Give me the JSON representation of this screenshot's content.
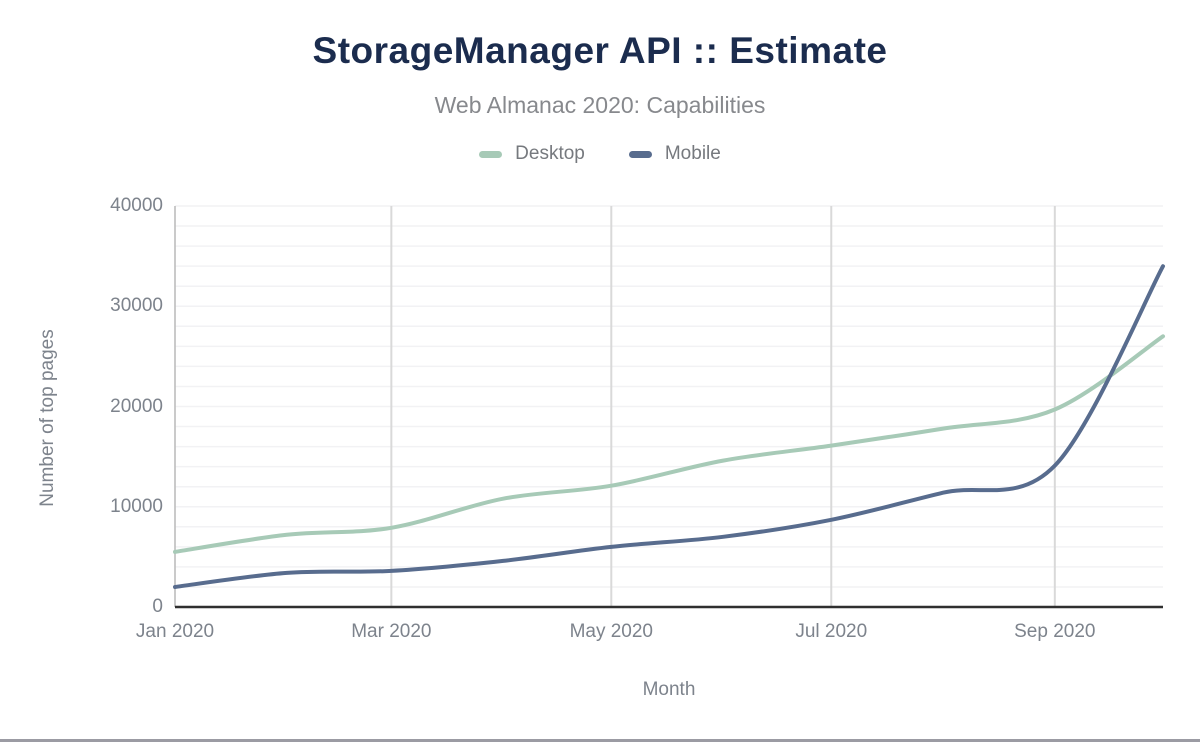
{
  "header": {
    "title": "StorageManager API :: Estimate",
    "subtitle": "Web Almanac 2020: Capabilities"
  },
  "colors": {
    "title": "#1b2c4e",
    "subtitle": "#87898d",
    "tick_label": "#7d838c",
    "desktop_line": "#a7cab7",
    "mobile_line": "#586c8e",
    "h_gridline": "#f2f2f4",
    "v_gridline": "#d9d9d9",
    "y_axis_line": "#b9b9b9",
    "x_axis_line": "#2f2f2f",
    "footer_bar": "#9b9ba3"
  },
  "chart_data": {
    "type": "line",
    "title": "StorageManager API :: Estimate",
    "subtitle": "Web Almanac 2020: Capabilities",
    "xlabel": "Month",
    "ylabel": "Number of top pages",
    "ylim": [
      0,
      40000
    ],
    "y_major_ticks": [
      {
        "value": 0,
        "label": "0"
      },
      {
        "value": 10000,
        "label": "10000"
      },
      {
        "value": 20000,
        "label": "20000"
      },
      {
        "value": 30000,
        "label": "30000"
      },
      {
        "value": 40000,
        "label": "40000"
      }
    ],
    "y_minor_grid_step": 2000,
    "grid": "on",
    "legend_position": "top",
    "x": [
      "Jan 2020",
      "Feb 2020",
      "Mar 2020",
      "Apr 2020",
      "May 2020",
      "Jun 2020",
      "Jul 2020",
      "Aug 2020",
      "Sep 2020",
      "Oct 2020"
    ],
    "x_days": [
      0,
      31,
      60,
      91,
      121,
      152,
      182,
      213,
      244,
      274
    ],
    "x_ticks": [
      {
        "label": "Jan 2020",
        "day": 0,
        "gridline": false
      },
      {
        "label": "Mar 2020",
        "day": 60,
        "gridline": true
      },
      {
        "label": "May 2020",
        "day": 121,
        "gridline": true
      },
      {
        "label": "Jul 2020",
        "day": 182,
        "gridline": true
      },
      {
        "label": "Sep 2020",
        "day": 244,
        "gridline": true
      }
    ],
    "series": [
      {
        "name": "Desktop",
        "color": "#a7cab7",
        "values": [
          5500,
          7200,
          7900,
          10800,
          12100,
          14600,
          16100,
          17800,
          19700,
          27000
        ]
      },
      {
        "name": "Mobile",
        "color": "#586c8e",
        "values": [
          2000,
          3400,
          3600,
          4600,
          6000,
          7000,
          8700,
          11400,
          14100,
          34000
        ]
      }
    ]
  }
}
